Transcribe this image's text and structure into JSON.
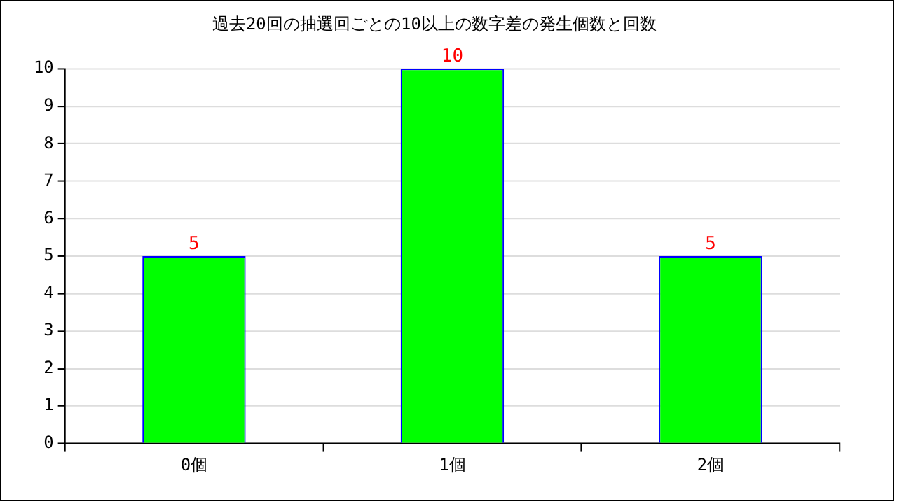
{
  "chart_data": {
    "type": "bar",
    "title": "過去20回の抽選回ごとの10以上の数字差の発生個数と回数",
    "categories": [
      "0個",
      "1個",
      "2個"
    ],
    "series": [
      {
        "color": "#00ff00",
        "values": [
          5,
          10,
          5
        ]
      }
    ],
    "ylim": [
      0,
      10
    ],
    "yticks": [
      0,
      1,
      2,
      3,
      4,
      5,
      6,
      7,
      8,
      9,
      10
    ],
    "grid": "y",
    "data_labels": true,
    "legend": false
  }
}
